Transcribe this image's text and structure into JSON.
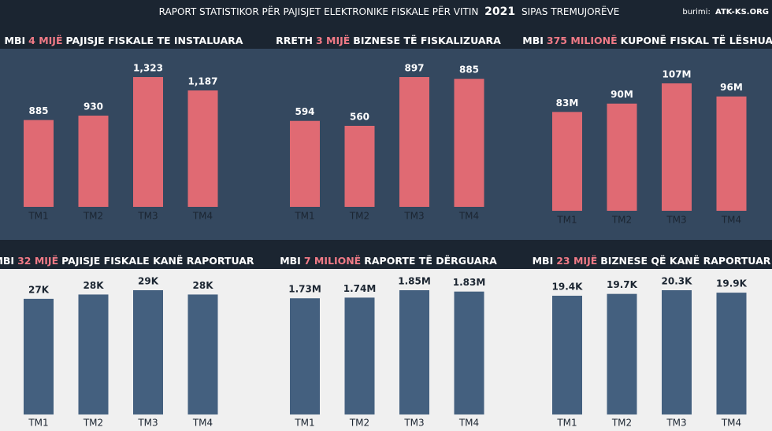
{
  "header": {
    "title_parts": [
      "RAPORT STATISTIKOR PËR PAJISJET ELEKTRONIKE FISKALE PËR VITIN",
      "2021",
      "SIPAS TREMUJORËVE"
    ],
    "source_label": "burimi:",
    "source": "ATK-KS.ORG"
  },
  "chart_data": [
    {
      "type": "bar",
      "title_parts": [
        "MBI",
        "4 MIJË",
        "PAJISJE FISKALE TE INSTALUARA"
      ],
      "categories": [
        "TM1",
        "TM2",
        "TM3",
        "TM4"
      ],
      "values": [
        885,
        930,
        1323,
        1187
      ],
      "value_labels": [
        "885",
        "930",
        "1,323",
        "1,187"
      ],
      "color": "#e06a73"
    },
    {
      "type": "bar",
      "title_parts": [
        "RRETH",
        "3 MIJË",
        "BIZNESE TË FISKALIZUARA"
      ],
      "categories": [
        "TM1",
        "TM2",
        "TM3",
        "TM4"
      ],
      "values": [
        594,
        560,
        897,
        885
      ],
      "value_labels": [
        "594",
        "560",
        "897",
        "885"
      ],
      "color": "#e06a73"
    },
    {
      "type": "bar",
      "title_parts": [
        "MBI",
        "375 MILIONË",
        "KUPONË FISKAL TË LËSHUAR"
      ],
      "categories": [
        "TM1",
        "TM2",
        "TM3",
        "TM4"
      ],
      "values": [
        83000000,
        90000000,
        107000000,
        96000000
      ],
      "value_labels": [
        "83M",
        "90M",
        "107M",
        "96M"
      ],
      "color": "#e06a73"
    },
    {
      "type": "bar",
      "title_parts": [
        "MBI",
        "32 MIJË",
        "PAJISJE FISKALE KANË RAPORTUAR"
      ],
      "categories": [
        "TM1",
        "TM2",
        "TM3",
        "TM4"
      ],
      "values": [
        27000,
        28000,
        29000,
        28000
      ],
      "value_labels": [
        "27K",
        "28K",
        "29K",
        "28K"
      ],
      "color": "#44607f"
    },
    {
      "type": "bar",
      "title_parts": [
        "MBI",
        "7 MILIONË",
        "RAPORTE TË DËRGUARA"
      ],
      "categories": [
        "TM1",
        "TM2",
        "TM3",
        "TM4"
      ],
      "values": [
        1730000,
        1740000,
        1850000,
        1830000
      ],
      "value_labels": [
        "1.73M",
        "1.74M",
        "1.85M",
        "1.83M"
      ],
      "color": "#44607f"
    },
    {
      "type": "bar",
      "title_parts": [
        "MBI",
        "23 MIJË",
        "BIZNESE QË KANË RAPORTUAR"
      ],
      "categories": [
        "TM1",
        "TM2",
        "TM3",
        "TM4"
      ],
      "values": [
        19400,
        19700,
        20300,
        19900
      ],
      "value_labels": [
        "19.4K",
        "19.7K",
        "20.3K",
        "19.9K"
      ],
      "color": "#44607f"
    }
  ]
}
